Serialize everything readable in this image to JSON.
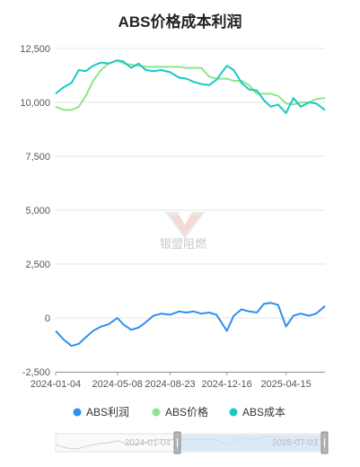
{
  "chart_data": {
    "type": "line",
    "title": "ABS价格成本利润",
    "xlabel": "",
    "ylabel": "",
    "ylim": [
      -2500,
      12500
    ],
    "yticks": [
      "12,500",
      "10,000",
      "7,500",
      "5,000",
      "2,500",
      "0",
      "-2,500"
    ],
    "ytick_values": [
      12500,
      10000,
      7500,
      5000,
      2500,
      0,
      -2500
    ],
    "xticks": [
      "2024-01-04",
      "2024-05-08",
      "2024-08-23",
      "2024-12-16",
      "2025-04-15"
    ],
    "x_start": "2024-01-04",
    "x_end": "2025-07-03",
    "grid": true,
    "legend_position": "bottom",
    "series": [
      {
        "name": "ABS利润",
        "color": "#2f8ff0",
        "points": [
          [
            "2024-01-04",
            -600
          ],
          [
            "2024-01-20",
            -1000
          ],
          [
            "2024-02-05",
            -1300
          ],
          [
            "2024-02-20",
            -1200
          ],
          [
            "2024-03-05",
            -900
          ],
          [
            "2024-03-20",
            -600
          ],
          [
            "2024-04-05",
            -400
          ],
          [
            "2024-04-20",
            -300
          ],
          [
            "2024-05-08",
            0
          ],
          [
            "2024-05-20",
            -300
          ],
          [
            "2024-06-05",
            -550
          ],
          [
            "2024-06-20",
            -450
          ],
          [
            "2024-07-05",
            -200
          ],
          [
            "2024-07-20",
            100
          ],
          [
            "2024-08-05",
            200
          ],
          [
            "2024-08-23",
            150
          ],
          [
            "2024-09-10",
            300
          ],
          [
            "2024-09-25",
            250
          ],
          [
            "2024-10-10",
            300
          ],
          [
            "2024-10-25",
            200
          ],
          [
            "2024-11-10",
            250
          ],
          [
            "2024-11-25",
            150
          ],
          [
            "2024-12-16",
            -600
          ],
          [
            "2024-12-30",
            100
          ],
          [
            "2025-01-15",
            400
          ],
          [
            "2025-01-30",
            300
          ],
          [
            "2025-02-15",
            250
          ],
          [
            "2025-03-01",
            650
          ],
          [
            "2025-03-15",
            700
          ],
          [
            "2025-03-30",
            600
          ],
          [
            "2025-04-15",
            -400
          ],
          [
            "2025-04-30",
            100
          ],
          [
            "2025-05-15",
            200
          ],
          [
            "2025-06-01",
            100
          ],
          [
            "2025-06-15",
            200
          ],
          [
            "2025-07-03",
            550
          ]
        ]
      },
      {
        "name": "ABS价格",
        "color": "#8ee58a",
        "points": [
          [
            "2024-01-04",
            9800
          ],
          [
            "2024-01-20",
            9650
          ],
          [
            "2024-02-05",
            9650
          ],
          [
            "2024-02-20",
            9800
          ],
          [
            "2024-03-05",
            10300
          ],
          [
            "2024-03-20",
            11000
          ],
          [
            "2024-04-05",
            11500
          ],
          [
            "2024-04-20",
            11800
          ],
          [
            "2024-05-08",
            11950
          ],
          [
            "2024-05-20",
            11800
          ],
          [
            "2024-06-05",
            11750
          ],
          [
            "2024-06-20",
            11700
          ],
          [
            "2024-07-05",
            11650
          ],
          [
            "2024-07-20",
            11650
          ],
          [
            "2024-08-05",
            11650
          ],
          [
            "2024-08-23",
            11650
          ],
          [
            "2024-09-10",
            11650
          ],
          [
            "2024-09-25",
            11600
          ],
          [
            "2024-10-10",
            11600
          ],
          [
            "2024-10-25",
            11600
          ],
          [
            "2024-11-10",
            11200
          ],
          [
            "2024-11-25",
            11100
          ],
          [
            "2024-12-16",
            11100
          ],
          [
            "2024-12-30",
            11000
          ],
          [
            "2025-01-15",
            11000
          ],
          [
            "2025-01-30",
            10800
          ],
          [
            "2025-02-15",
            10400
          ],
          [
            "2025-03-01",
            10400
          ],
          [
            "2025-03-15",
            10400
          ],
          [
            "2025-03-30",
            10300
          ],
          [
            "2025-04-15",
            9950
          ],
          [
            "2025-04-30",
            9900
          ],
          [
            "2025-05-15",
            10000
          ],
          [
            "2025-06-01",
            10000
          ],
          [
            "2025-06-15",
            10150
          ],
          [
            "2025-07-03",
            10200
          ]
        ]
      },
      {
        "name": "ABS成本",
        "color": "#17c8c8",
        "points": [
          [
            "2024-01-04",
            10400
          ],
          [
            "2024-01-20",
            10700
          ],
          [
            "2024-02-05",
            10900
          ],
          [
            "2024-02-20",
            11500
          ],
          [
            "2024-03-05",
            11450
          ],
          [
            "2024-03-20",
            11700
          ],
          [
            "2024-04-05",
            11850
          ],
          [
            "2024-04-20",
            11800
          ],
          [
            "2024-05-08",
            11950
          ],
          [
            "2024-05-20",
            11900
          ],
          [
            "2024-06-05",
            11600
          ],
          [
            "2024-06-20",
            11800
          ],
          [
            "2024-07-05",
            11500
          ],
          [
            "2024-07-20",
            11450
          ],
          [
            "2024-08-05",
            11500
          ],
          [
            "2024-08-23",
            11400
          ],
          [
            "2024-09-10",
            11150
          ],
          [
            "2024-09-25",
            11100
          ],
          [
            "2024-10-10",
            10950
          ],
          [
            "2024-10-25",
            10850
          ],
          [
            "2024-11-10",
            10800
          ],
          [
            "2024-11-25",
            11050
          ],
          [
            "2024-12-16",
            11700
          ],
          [
            "2024-12-30",
            11500
          ],
          [
            "2025-01-15",
            10900
          ],
          [
            "2025-01-30",
            10600
          ],
          [
            "2025-02-15",
            10550
          ],
          [
            "2025-03-01",
            10100
          ],
          [
            "2025-03-15",
            9800
          ],
          [
            "2025-03-30",
            9900
          ],
          [
            "2025-04-15",
            9500
          ],
          [
            "2025-04-30",
            10200
          ],
          [
            "2025-05-15",
            9800
          ],
          [
            "2025-06-01",
            10000
          ],
          [
            "2025-06-15",
            9950
          ],
          [
            "2025-07-03",
            9650
          ]
        ]
      }
    ]
  },
  "watermark": "银盟阻燃",
  "zoom": {
    "start_label": "2024-01-04",
    "end_label": "2025-07-03"
  }
}
